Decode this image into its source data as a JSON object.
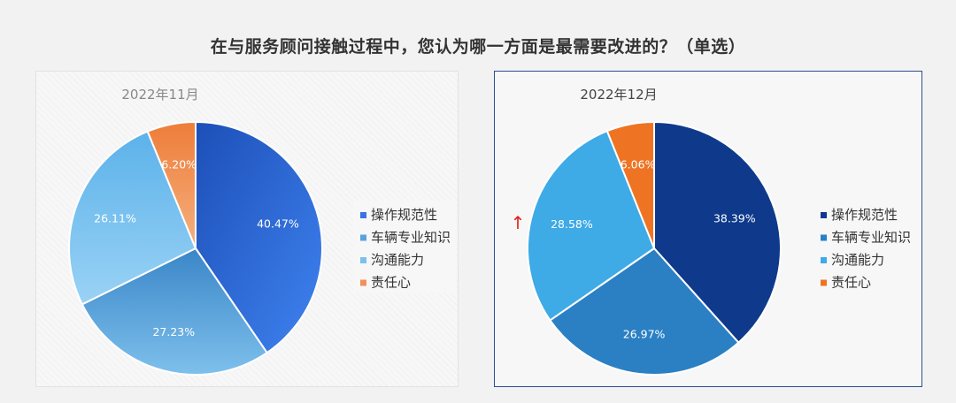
{
  "title": "在与服务顾问接触过程中，您认为哪一方面是最需要改进的？（单选）",
  "chart_data": [
    {
      "type": "pie",
      "title": "2022年11月",
      "categories": [
        "操作规范性",
        "车辆专业知识",
        "沟通能力",
        "责任心"
      ],
      "values": [
        40.47,
        27.23,
        26.11,
        6.2
      ],
      "labels": [
        "40.47%",
        "27.23%",
        "26.11%",
        "6.20%"
      ],
      "colors": [
        "#3b73e0",
        "#5aa3dc",
        "#7cc0ee",
        "#f0915a"
      ],
      "legend_position": "right"
    },
    {
      "type": "pie",
      "title": "2022年12月",
      "categories": [
        "操作规范性",
        "车辆专业知识",
        "沟通能力",
        "责任心"
      ],
      "values": [
        38.39,
        26.97,
        28.58,
        6.06
      ],
      "labels": [
        "38.39%",
        "26.97%",
        "28.58%",
        "6.06%"
      ],
      "colors": [
        "#0f3a8c",
        "#2b80c4",
        "#3eaae6",
        "#ee7424"
      ],
      "legend_position": "right"
    }
  ],
  "annotation": {
    "symbol": "↑",
    "color": "#e02020"
  }
}
